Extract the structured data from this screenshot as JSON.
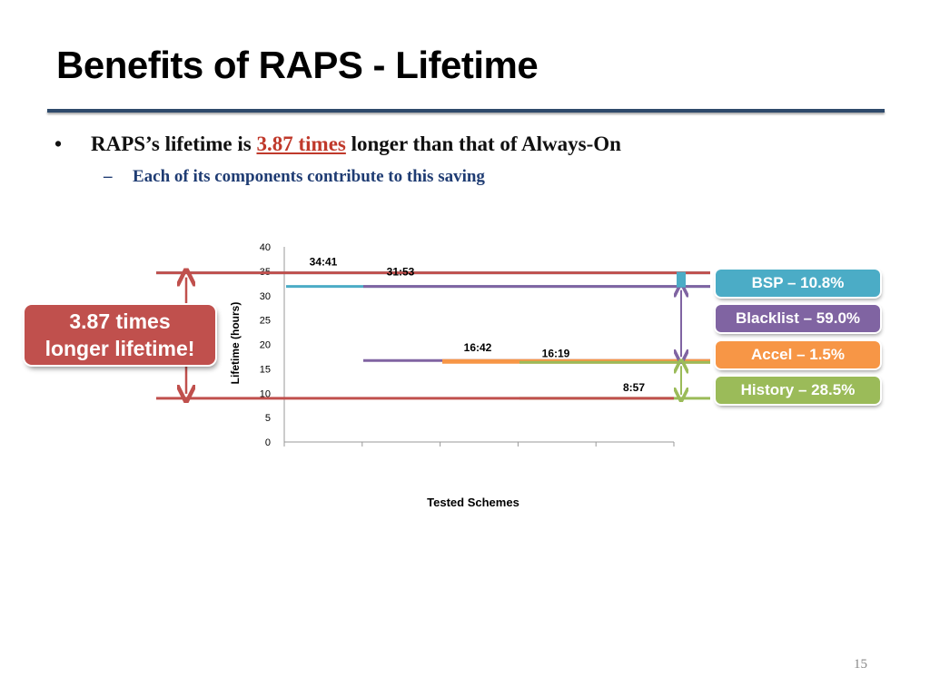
{
  "slide": {
    "title": "Benefits of RAPS - Lifetime",
    "bullet": {
      "prefix": "RAPS’s lifetime is",
      "highlight": "3.87 times",
      "suffix": "longer than that of Always-On"
    },
    "sub_bullet": "Each of its components contribute to this saving",
    "page_number": "15"
  },
  "callout": {
    "line1": "3.87 times",
    "line2": "longer lifetime!"
  },
  "breakdown": {
    "bsp": "BSP – 10.8%",
    "blacklist": "Blacklist – 59.0%",
    "accel": "Accel – 1.5%",
    "history": "History – 28.5%"
  },
  "colors": {
    "red": "#c0504d",
    "blue": "#4bacc6",
    "purple": "#8064a2",
    "orange": "#f79646",
    "green": "#9bbb59"
  },
  "chart_data": {
    "type": "bar",
    "title": "",
    "xlabel": "Tested Schemes",
    "ylabel": "Lifetime (hours)",
    "ylim": [
      0,
      40
    ],
    "yticks": [
      0,
      5,
      10,
      15,
      20,
      25,
      30,
      35,
      40
    ],
    "categories": [
      "",
      "",
      "",
      "",
      ""
    ],
    "values": [
      34.68,
      31.88,
      16.7,
      16.32,
      8.95
    ],
    "data_labels": [
      "34:41",
      "31:53",
      "16:42",
      "16:19",
      "8:57"
    ]
  }
}
